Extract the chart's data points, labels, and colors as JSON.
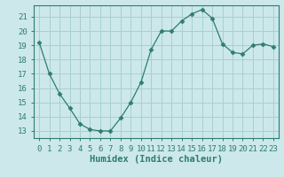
{
  "x": [
    0,
    1,
    2,
    3,
    4,
    5,
    6,
    7,
    8,
    9,
    10,
    11,
    12,
    13,
    14,
    15,
    16,
    17,
    18,
    19,
    20,
    21,
    22,
    23
  ],
  "y": [
    19.2,
    17.0,
    15.6,
    14.6,
    13.5,
    13.1,
    13.0,
    13.0,
    13.9,
    15.0,
    16.4,
    18.7,
    20.0,
    20.0,
    20.7,
    21.2,
    21.5,
    20.9,
    19.1,
    18.5,
    18.4,
    19.0,
    19.1,
    18.9
  ],
  "line_color": "#2e7d6e",
  "marker": "D",
  "marker_size": 2.5,
  "bg_color": "#cce8ea",
  "grid_color": "#a8cfd1",
  "xlabel": "Humidex (Indice chaleur)",
  "ylim": [
    12.5,
    21.8
  ],
  "xlim": [
    -0.5,
    23.5
  ],
  "yticks": [
    13,
    14,
    15,
    16,
    17,
    18,
    19,
    20,
    21
  ],
  "xticks": [
    0,
    1,
    2,
    3,
    4,
    5,
    6,
    7,
    8,
    9,
    10,
    11,
    12,
    13,
    14,
    15,
    16,
    17,
    18,
    19,
    20,
    21,
    22,
    23
  ],
  "tick_label_fontsize": 6.5,
  "xlabel_fontsize": 7.5
}
